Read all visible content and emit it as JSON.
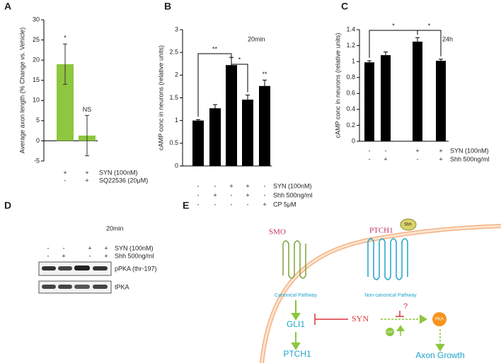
{
  "chart_data": [
    {
      "type": "bar",
      "ylabel": "Average axon length (% Change vs. Vehicle)",
      "values": [
        19,
        1.3
      ],
      "errors": [
        5,
        5
      ],
      "color": "#8dc63f",
      "ylim": [
        -5,
        30
      ],
      "yticks": [
        -5,
        0,
        5,
        10,
        15,
        20,
        25,
        30
      ],
      "bar_labels": [
        "*",
        "NS"
      ],
      "conditions": [
        {
          "name": "SYN (100nM)",
          "values": [
            "+",
            "+"
          ]
        },
        {
          "name": "SQ22536 (20μM)",
          "values": [
            "-",
            "+"
          ]
        }
      ]
    },
    {
      "type": "bar",
      "ylabel": "cAMP conc in neurons (relative units)",
      "annotation": "20min",
      "values": [
        1.0,
        1.27,
        2.22,
        1.46,
        1.76
      ],
      "errors": [
        0.02,
        0.08,
        0.17,
        0.1,
        0.13
      ],
      "color": "#000000",
      "ylim": [
        0,
        3
      ],
      "yticks": [
        0,
        0.5,
        1,
        1.5,
        2,
        2.5,
        3
      ],
      "bar_labels": [
        null,
        null,
        null,
        null,
        "**"
      ],
      "brackets": [
        "**",
        "*"
      ],
      "conditions": [
        {
          "name": "SYN (100nM)",
          "values": [
            "-",
            "-",
            "+",
            "+",
            "-"
          ]
        },
        {
          "name": "Shh 500ng/ml",
          "values": [
            "-",
            "+",
            "-",
            "+",
            "-"
          ]
        },
        {
          "name": "CP 5μM",
          "values": [
            "-",
            "-",
            "-",
            "-",
            "+"
          ]
        }
      ]
    },
    {
      "type": "bar",
      "ylabel": "cAMP conc in neurons (relative units)",
      "annotation": "24h",
      "values": [
        0.99,
        1.08,
        1.25,
        1.01
      ],
      "errors": [
        0.02,
        0.04,
        0.05,
        0.02
      ],
      "color": "#000000",
      "ylim": [
        0,
        1.4
      ],
      "yticks": [
        0,
        0.2,
        0.4,
        0.6,
        0.8,
        1,
        1.2,
        1.4
      ],
      "brackets": [
        "*",
        "*"
      ],
      "conditions": [
        {
          "name": "SYN (100nM)",
          "values": [
            "-",
            "-",
            "+",
            "+"
          ]
        },
        {
          "name": "Shh 500ng/ml",
          "values": [
            "-",
            "+",
            "-",
            "+"
          ]
        }
      ]
    }
  ],
  "panels": [
    "A",
    "B",
    "C",
    "D",
    "E"
  ],
  "blot": {
    "annotation": "20min",
    "conditions": [
      {
        "name": "SYN (100nM)",
        "values": [
          "-",
          "-",
          "+",
          "+"
        ]
      },
      {
        "name": "Shh 500ng/ml",
        "values": [
          "-",
          "+",
          "-",
          "+"
        ]
      }
    ],
    "bands": [
      "pPKA (thr-197)",
      "tPKA"
    ]
  },
  "diagram": {
    "smo": "SMO",
    "ptch1_receptor": "PTCH1",
    "shh": "Shh",
    "canonical": "Canonical Pathway",
    "noncanonical": "Non-canonical Pathway",
    "syn": "SYN",
    "question": "?",
    "pka": "PKA",
    "camp": "cAMP",
    "gli1": "GLI1",
    "ptch1_gene": "PTCH1",
    "axon_growth": "Axon Growth"
  }
}
